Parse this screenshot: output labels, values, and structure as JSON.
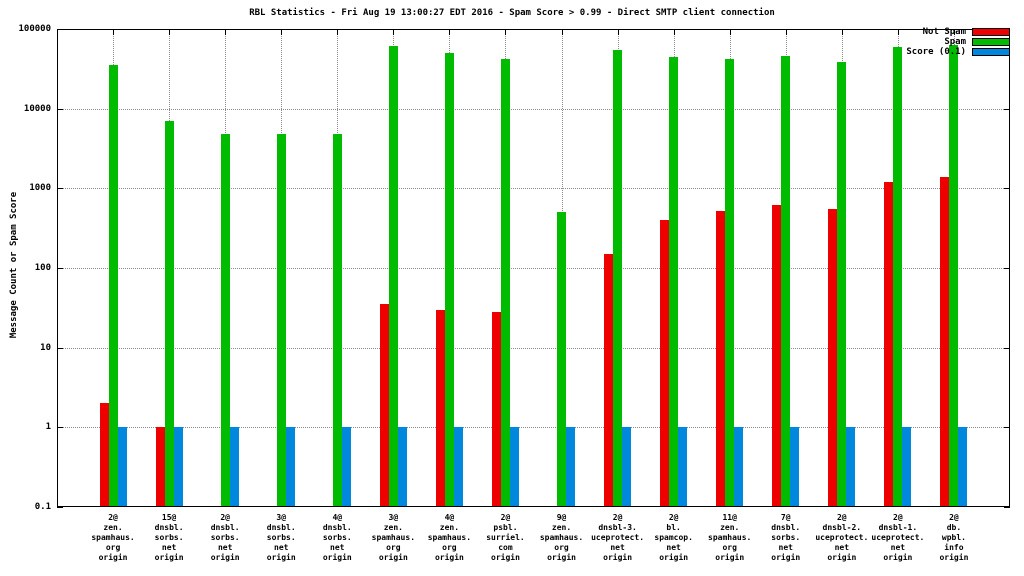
{
  "chart_data": {
    "type": "bar",
    "title": "RBL Statistics - Fri Aug 19 13:00:27 EDT 2016 - Spam Score > 0.99 - Direct SMTP client connection",
    "ylabel": "Message Count or Spam Score",
    "yscale": "log",
    "ylim": [
      0.1,
      100000
    ],
    "ytick_labels": [
      "0.1",
      "1",
      "10",
      "100",
      "1000",
      "10000",
      "100000"
    ],
    "ytick_values": [
      0.1,
      1,
      10,
      100,
      1000,
      10000,
      100000
    ],
    "grid": true,
    "legend_position": "top-right",
    "categories": [
      [
        "2@",
        "zen.",
        "spamhaus.",
        "org",
        "origin"
      ],
      [
        "15@",
        "dnsbl.",
        "sorbs.",
        "net",
        "origin"
      ],
      [
        "2@",
        "dnsbl.",
        "sorbs.",
        "net",
        "origin"
      ],
      [
        "3@",
        "dnsbl.",
        "sorbs.",
        "net",
        "origin"
      ],
      [
        "4@",
        "dnsbl.",
        "sorbs.",
        "net",
        "origin"
      ],
      [
        "3@",
        "zen.",
        "spamhaus.",
        "org",
        "origin"
      ],
      [
        "4@",
        "zen.",
        "spamhaus.",
        "org",
        "origin"
      ],
      [
        "2@",
        "psbl.",
        "surriel.",
        "com",
        "origin"
      ],
      [
        "9@",
        "zen.",
        "spamhaus.",
        "org",
        "origin"
      ],
      [
        "2@",
        "dnsbl-3.",
        "uceprotect.",
        "net",
        "origin"
      ],
      [
        "2@",
        "bl.",
        "spamcop.",
        "net",
        "origin"
      ],
      [
        "11@",
        "zen.",
        "spamhaus.",
        "org",
        "origin"
      ],
      [
        "7@",
        "dnsbl.",
        "sorbs.",
        "net",
        "origin"
      ],
      [
        "2@",
        "dnsbl-2.",
        "uceprotect.",
        "net",
        "origin"
      ],
      [
        "2@",
        "dnsbl-1.",
        "uceprotect.",
        "net",
        "origin"
      ],
      [
        "2@",
        "db.",
        "wpbl.",
        "info",
        "origin"
      ]
    ],
    "series": [
      {
        "name": "Not Spam",
        "color": "#ee0000",
        "values": [
          2,
          1,
          null,
          null,
          null,
          35,
          30,
          28,
          null,
          150,
          400,
          520,
          620,
          550,
          1200,
          1400
        ]
      },
      {
        "name": "Spam",
        "color": "#00bb00",
        "values": [
          35000,
          7000,
          4800,
          4800,
          4800,
          62000,
          50000,
          42000,
          500,
          55000,
          45000,
          42000,
          46000,
          38000,
          60000,
          63000
        ]
      },
      {
        "name": "Score (0.1)",
        "color": "#0088dd",
        "values": [
          1,
          1,
          1,
          1,
          1,
          1,
          1,
          1,
          1,
          1,
          1,
          1,
          1,
          1,
          1,
          1
        ]
      }
    ]
  }
}
